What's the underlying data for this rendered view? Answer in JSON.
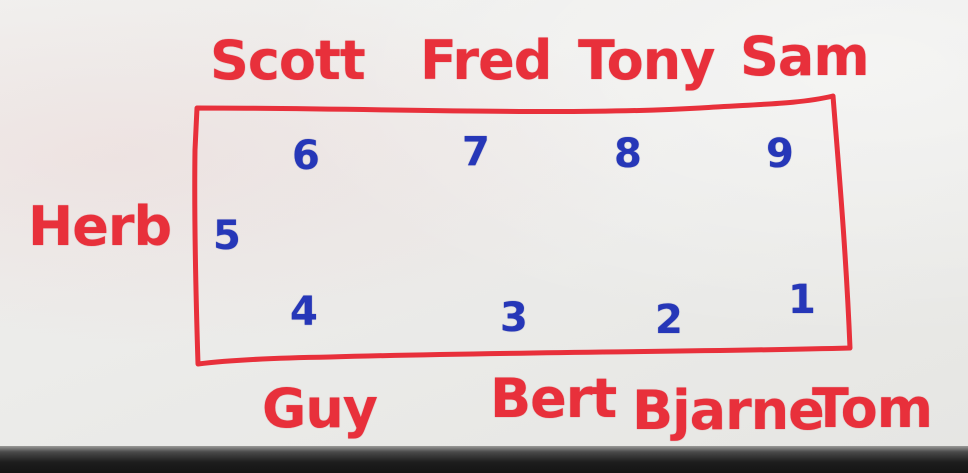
{
  "colors": {
    "board": "#ecece9",
    "red_marker": "#e8303b",
    "blue_marker": "#2637b8",
    "tray": "#1d1d1d"
  },
  "names": {
    "top": [
      "Scott",
      "Fred",
      "Tony",
      "Sam"
    ],
    "left": "Herb",
    "bottom": [
      "Guy",
      "Bert",
      "Bjarne",
      "Tom"
    ]
  },
  "numbers": {
    "top": [
      "6",
      "7",
      "8",
      "9"
    ],
    "left": "5",
    "bottom": [
      "4",
      "3",
      "2",
      "1"
    ]
  }
}
